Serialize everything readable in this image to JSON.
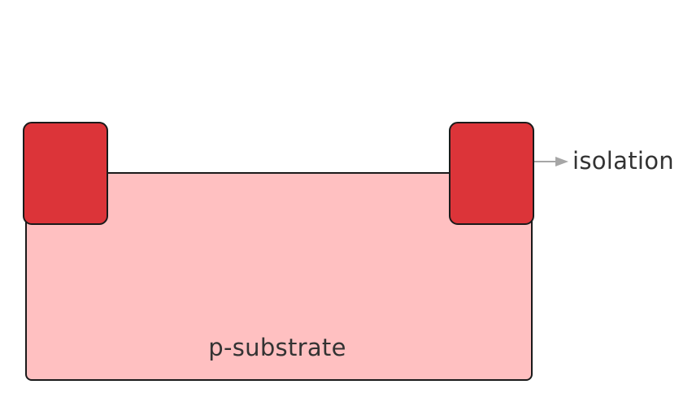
{
  "diagram": {
    "substrate": {
      "label": "p-substrate",
      "fill": "#ffc0c1"
    },
    "isolation": {
      "label": "isolation",
      "fill": "#dc3439"
    },
    "arrow": {
      "color": "#a6a6a6"
    }
  }
}
